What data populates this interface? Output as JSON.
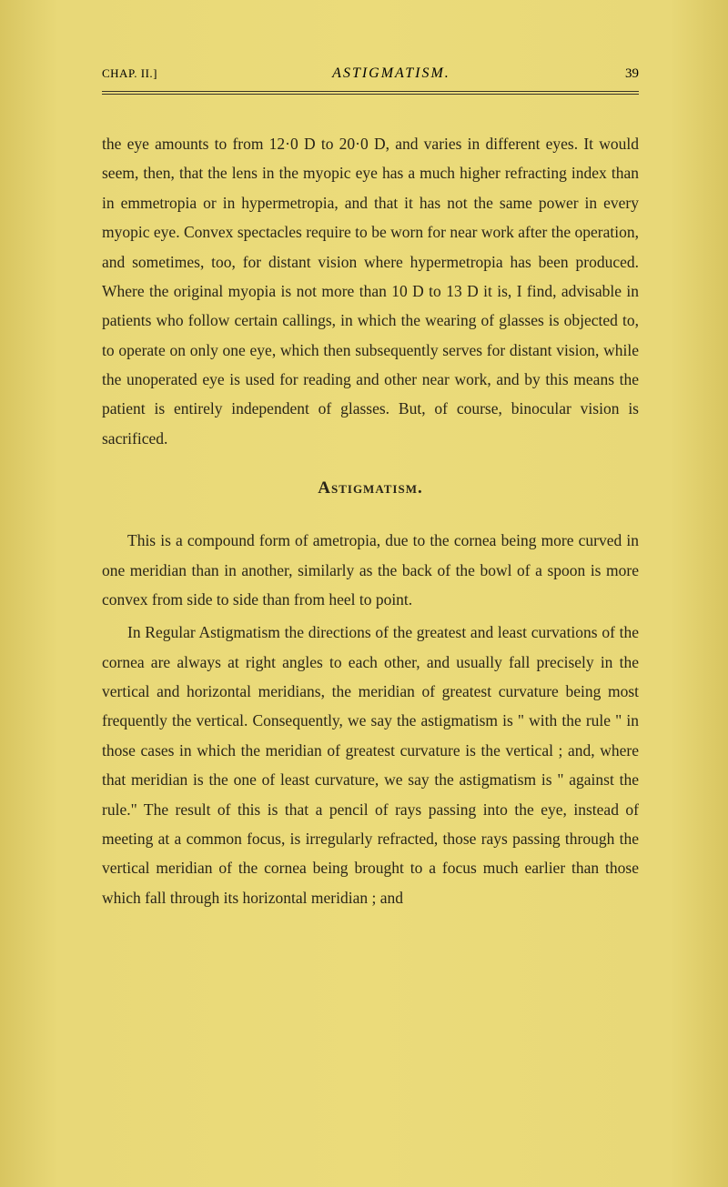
{
  "header": {
    "chapter_label": "CHAP. II.]",
    "running_title": "ASTIGMATISM.",
    "page_number": "39"
  },
  "body": {
    "paragraph1": "the eye amounts to from 12·0 D to 20·0 D, and varies in different eyes. It would seem, then, that the lens in the myopic eye has a much higher refracting index than in emmetropia or in hypermetropia, and that it has not the same power in every myopic eye. Convex spectacles require to be worn for near work after the operation, and sometimes, too, for distant vision where hypermetropia has been produced. Where the original myopia is not more than 10 D to 13 D it is, I find, advisable in patients who follow certain callings, in which the wearing of glasses is objected to, to operate on only one eye, which then subsequently serves for distant vision, while the unoperated eye is used for reading and other near work, and by this means the patient is entirely independent of glasses. But, of course, binocular vision is sacrificed.",
    "section_heading": "Astigmatism.",
    "paragraph2": "This is a compound form of ametropia, due to the cornea being more curved in one meridian than in another, similarly as the back of the bowl of a spoon is more convex from side to side than from heel to point.",
    "paragraph3": "In Regular Astigmatism the directions of the greatest and least curvations of the cornea are always at right angles to each other, and usually fall precisely in the vertical and horizontal meridians, the meridian of greatest curvature being most frequently the vertical. Consequently, we say the astigmatism is \" with the rule \" in those cases in which the meridian of greatest curvature is the vertical ; and, where that meridian is the one of least curvature, we say the astigmatism is \" against the rule.\" The result of this is that a pencil of rays passing into the eye, instead of meeting at a common focus, is irregularly refracted, those rays passing through the vertical meridian of the cornea being brought to a focus much earlier than those which fall through its horizontal meridian ; and"
  },
  "styling": {
    "page_bg": "#e8d878",
    "text_color": "#2a2518",
    "rule_color": "#3a3428",
    "body_font_size": 17.5,
    "body_line_height": 1.85,
    "heading_font_size": 19,
    "header_font_size": 14
  }
}
